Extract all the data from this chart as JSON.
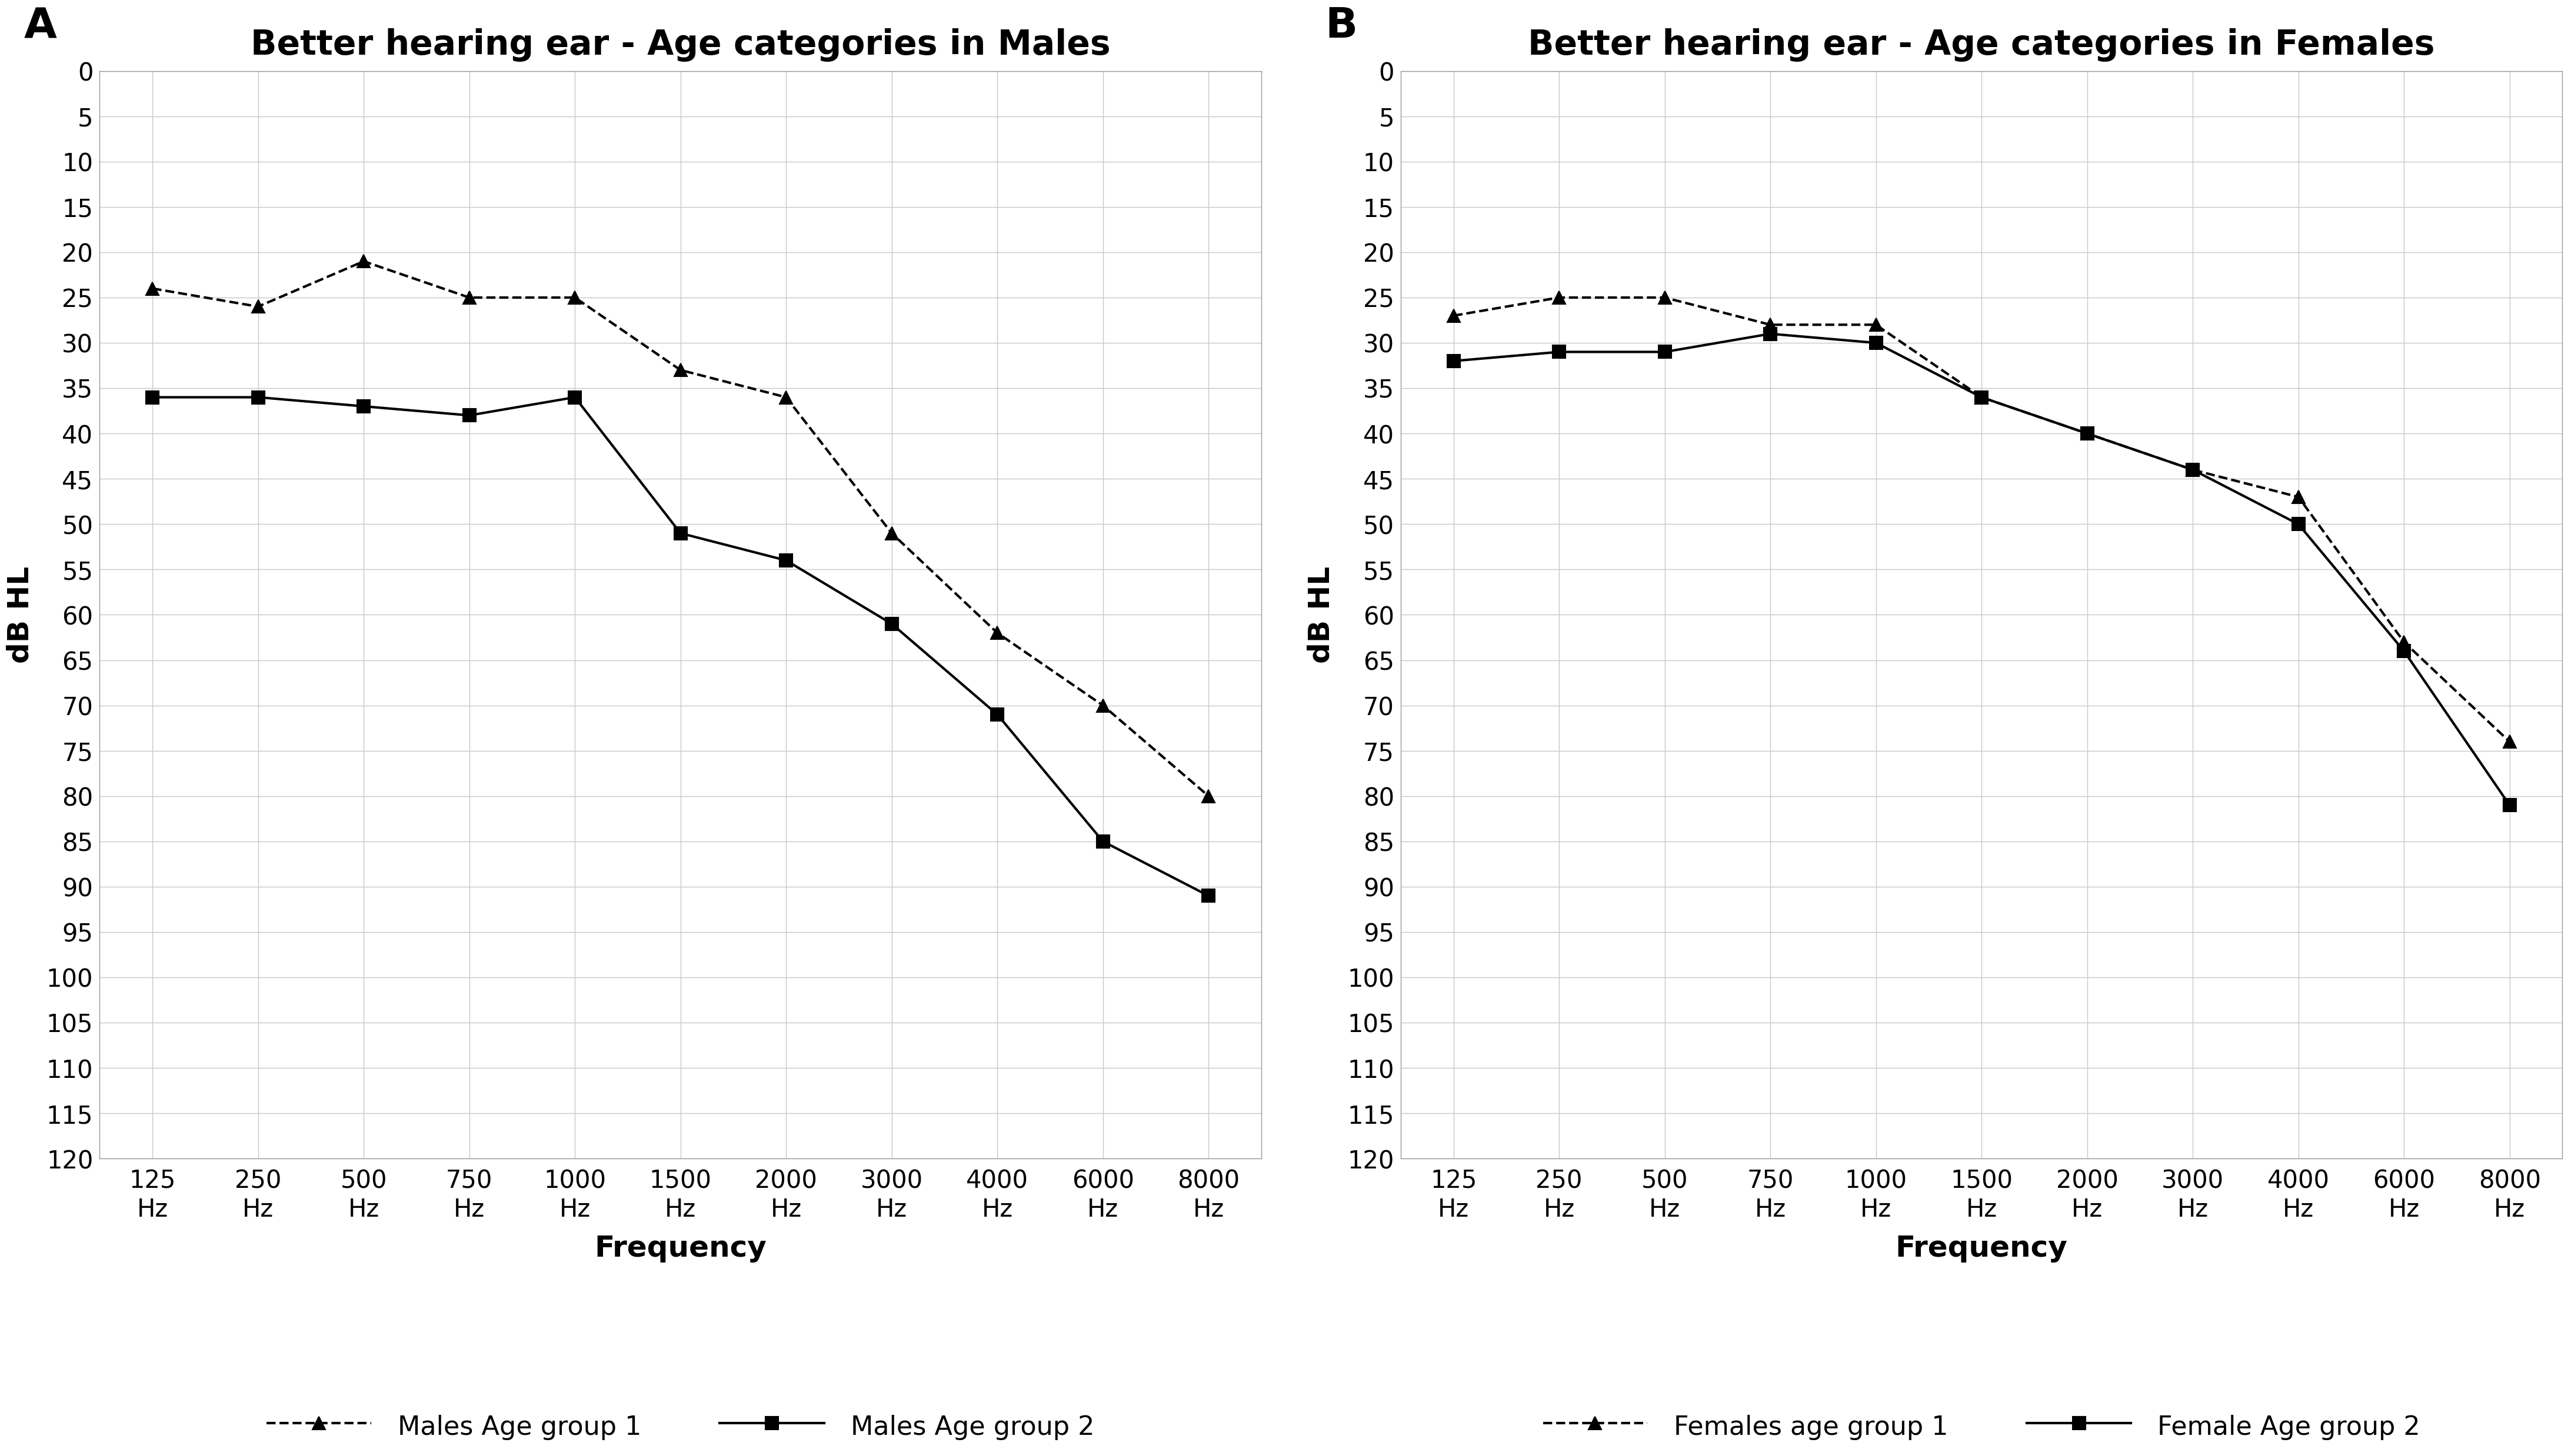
{
  "title_A": "Better hearing ear - Age categories in Males",
  "title_B": "Better hearing ear - Age categories in Females",
  "label_A": "A",
  "label_B": "B",
  "ylabel": "dB HL",
  "xlabel": "Frequency",
  "freq_labels": [
    "125\nHz",
    "250\nHz",
    "500\nHz",
    "750\nHz",
    "1000\nHz",
    "1500\nHz",
    "2000\nHz",
    "3000\nHz",
    "4000\nHz",
    "6000\nHz",
    "8000\nHz"
  ],
  "x_vals": [
    0,
    1,
    2,
    3,
    4,
    5,
    6,
    7,
    8,
    9,
    10
  ],
  "males_group1": [
    24,
    26,
    21,
    25,
    25,
    33,
    36,
    51,
    62,
    70,
    80
  ],
  "males_group2": [
    36,
    36,
    37,
    38,
    36,
    51,
    54,
    61,
    71,
    85,
    91
  ],
  "females_group1": [
    27,
    25,
    25,
    28,
    28,
    36,
    40,
    44,
    47,
    63,
    74
  ],
  "females_group2": [
    32,
    31,
    31,
    29,
    30,
    36,
    40,
    44,
    50,
    64,
    81
  ],
  "legend_A": [
    "Males Age group 1",
    "Males Age group 2"
  ],
  "legend_B": [
    "Females age group 1",
    "Female Age group 2"
  ],
  "yticks": [
    0,
    5,
    10,
    15,
    20,
    25,
    30,
    35,
    40,
    45,
    50,
    55,
    60,
    65,
    70,
    75,
    80,
    85,
    90,
    95,
    100,
    105,
    110,
    115,
    120
  ],
  "ylim_min": 0,
  "ylim_max": 120,
  "background_color": "#ffffff",
  "grid_color": "#c8c8c8",
  "line_color": "#000000",
  "title_fontsize": 42,
  "axis_label_fontsize": 36,
  "tick_fontsize": 30,
  "legend_fontsize": 32,
  "marker_size": 16,
  "line_width": 3.0,
  "panel_label_fontsize": 52
}
